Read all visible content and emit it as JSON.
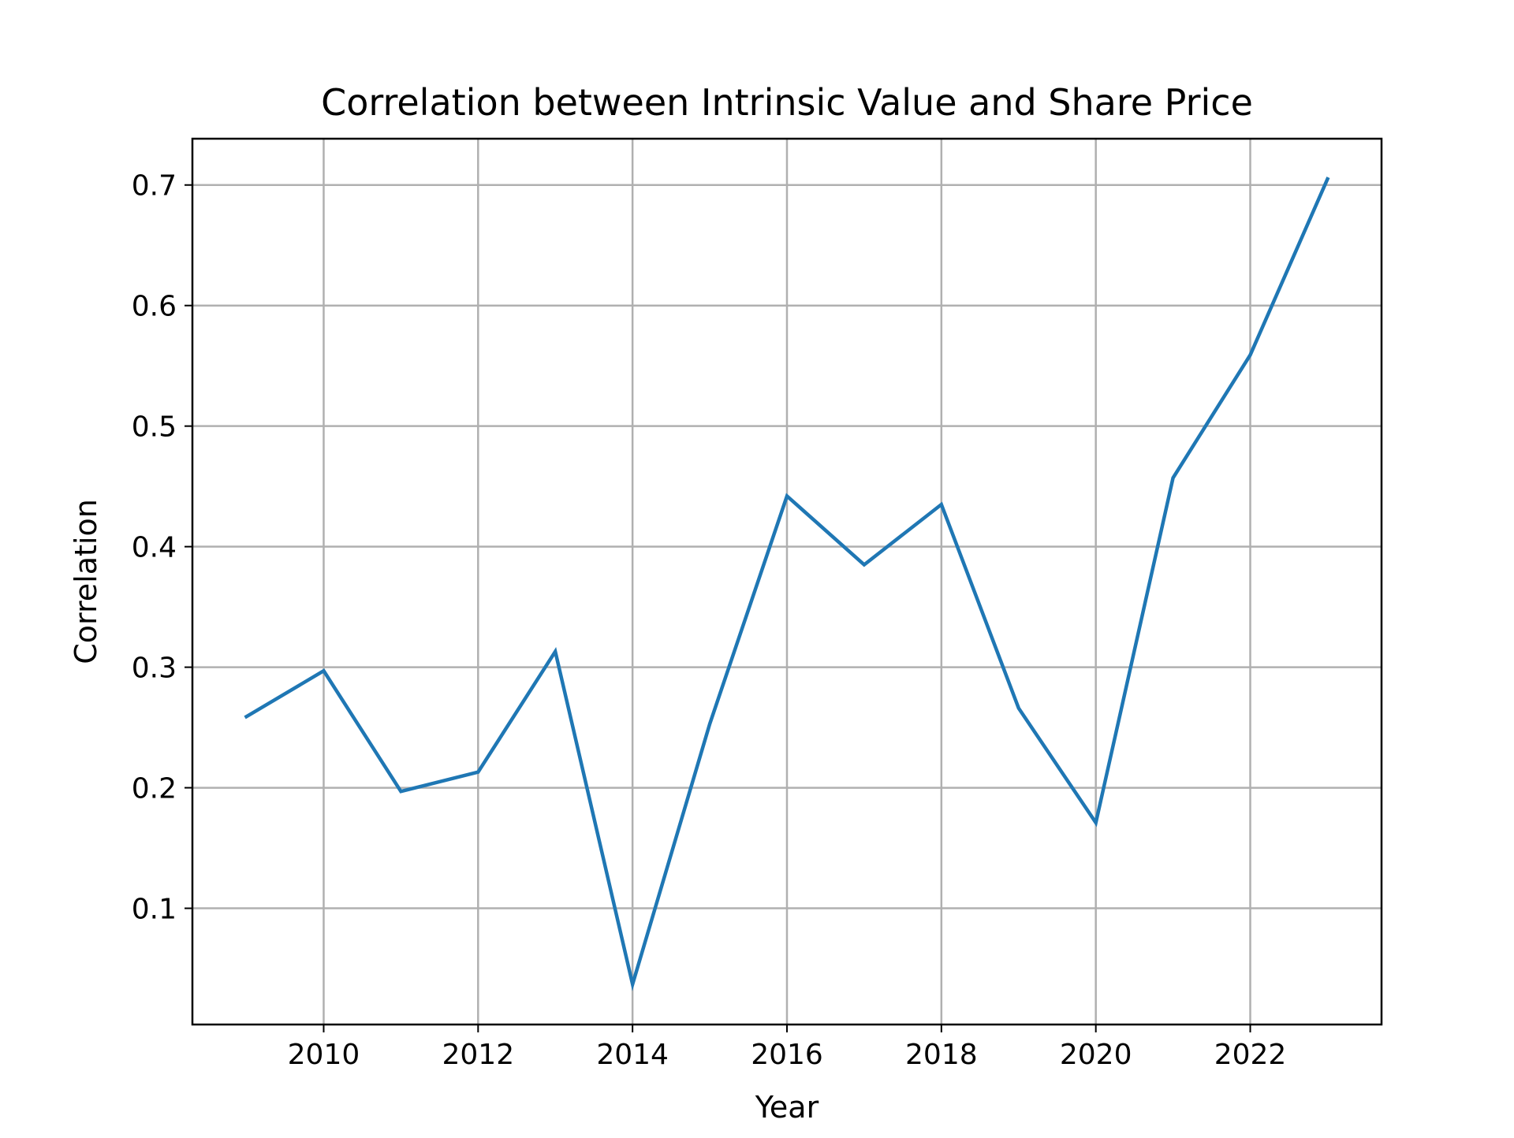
{
  "chart_data": {
    "type": "line",
    "title": "Correlation between Intrinsic Value and Share Price",
    "xlabel": "Year",
    "ylabel": "Correlation",
    "x": [
      2009,
      2010,
      2011,
      2012,
      2013,
      2014,
      2015,
      2016,
      2017,
      2018,
      2019,
      2020,
      2021,
      2022,
      2023
    ],
    "series": [
      {
        "values": [
          0.259,
          0.297,
          0.197,
          0.213,
          0.313,
          0.037,
          0.253,
          0.442,
          0.385,
          0.435,
          0.266,
          0.171,
          0.457,
          0.559,
          0.705
        ],
        "color": "#1f77b4"
      }
    ],
    "xlim": [
      2008.3,
      2023.7
    ],
    "ylim": [
      0.0036,
      0.7384
    ],
    "x_ticks": [
      2010,
      2012,
      2014,
      2016,
      2018,
      2020,
      2022
    ],
    "x_tick_labels": [
      "2010",
      "2012",
      "2014",
      "2016",
      "2018",
      "2020",
      "2022"
    ],
    "y_ticks": [
      0.1,
      0.2,
      0.3,
      0.4,
      0.5,
      0.6,
      0.7
    ],
    "y_tick_labels": [
      "0.1",
      "0.2",
      "0.3",
      "0.4",
      "0.5",
      "0.6",
      "0.7"
    ],
    "grid": true,
    "legend": "none"
  }
}
